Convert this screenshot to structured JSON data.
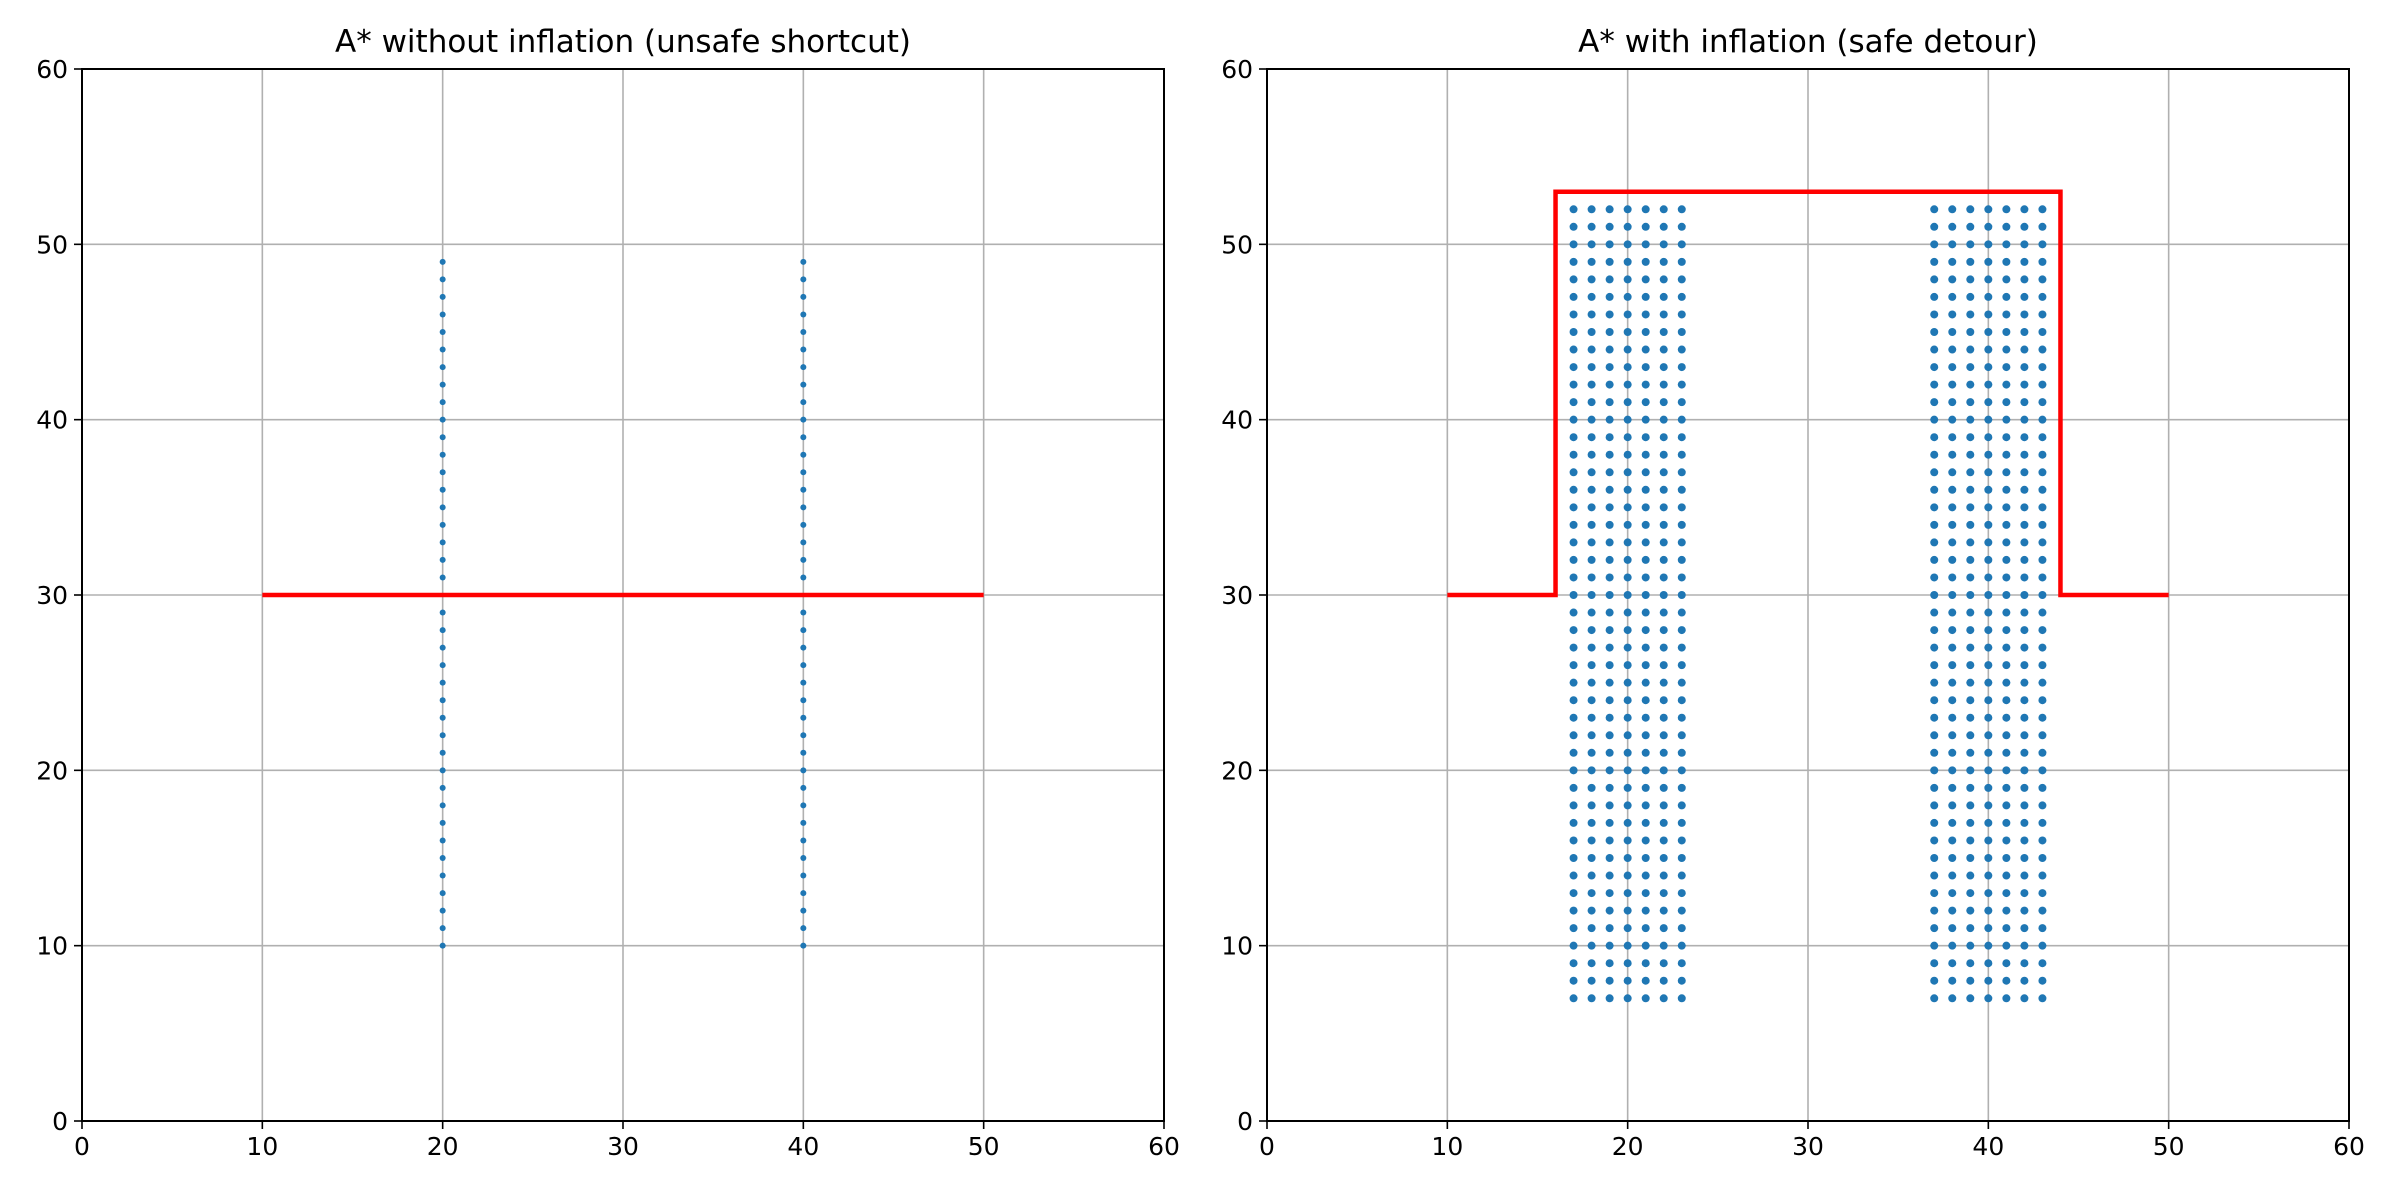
{
  "chart_data": [
    {
      "type": "scatter",
      "title": "A* without inflation (unsafe shortcut)",
      "xlabel": "",
      "ylabel": "",
      "xlim": [
        0,
        60
      ],
      "ylim": [
        0,
        60
      ],
      "xticks": [
        0,
        10,
        20,
        30,
        40,
        50,
        60
      ],
      "yticks": [
        0,
        10,
        20,
        30,
        40,
        50,
        60
      ],
      "grid": true,
      "obstacles": {
        "color": "#1f77b4",
        "marker_size": 3,
        "columns": [
          {
            "x_from": 20,
            "x_to": 20,
            "y_from": 10,
            "y_to": 49,
            "skip_y": [
              30
            ]
          },
          {
            "x_from": 40,
            "x_to": 40,
            "y_from": 10,
            "y_to": 49,
            "skip_y": [
              30
            ]
          }
        ]
      },
      "path": {
        "color": "#ff0000",
        "points": [
          [
            10,
            30
          ],
          [
            50,
            30
          ]
        ]
      }
    },
    {
      "type": "scatter",
      "title": "A* with inflation (safe detour)",
      "xlabel": "",
      "ylabel": "",
      "xlim": [
        0,
        60
      ],
      "ylim": [
        0,
        60
      ],
      "xticks": [
        0,
        10,
        20,
        30,
        40,
        50,
        60
      ],
      "yticks": [
        0,
        10,
        20,
        30,
        40,
        50,
        60
      ],
      "grid": true,
      "obstacles": {
        "color": "#1f77b4",
        "marker_size": 4,
        "columns": [
          {
            "x_from": 17,
            "x_to": 23,
            "y_from": 7,
            "y_to": 52,
            "skip_y": []
          },
          {
            "x_from": 37,
            "x_to": 43,
            "y_from": 7,
            "y_to": 52,
            "skip_y": []
          }
        ]
      },
      "path": {
        "color": "#ff0000",
        "points": [
          [
            10,
            30
          ],
          [
            16,
            30
          ],
          [
            16,
            53
          ],
          [
            44,
            53
          ],
          [
            44,
            30
          ],
          [
            50,
            30
          ]
        ]
      }
    }
  ]
}
